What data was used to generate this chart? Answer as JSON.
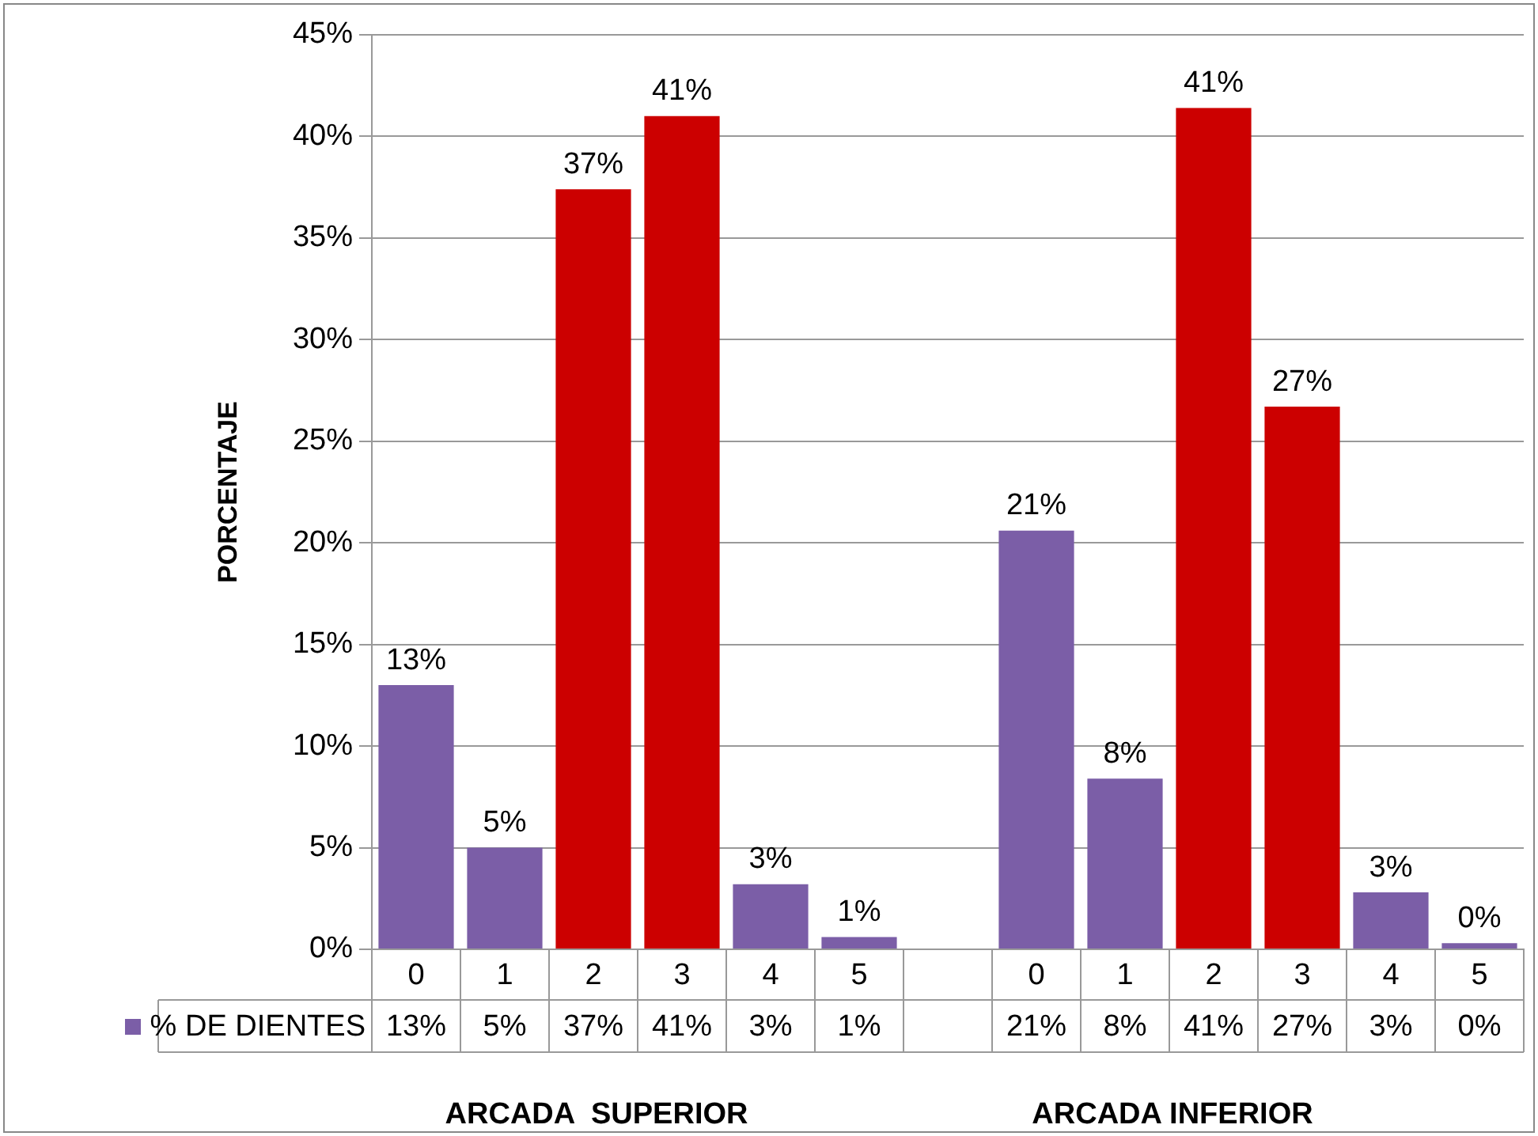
{
  "chart_data": {
    "type": "bar",
    "ylabel": "PORCENTAJE",
    "categories": [
      "0",
      "1",
      "2",
      "3",
      "4",
      "5",
      null,
      "0",
      "1",
      "2",
      "3",
      "4",
      "5"
    ],
    "series": [
      {
        "name": "% DE DIENTES",
        "color": "#7b5ea7",
        "values": [
          13,
          5,
          37.4,
          41,
          3.2,
          0.6,
          null,
          20.6,
          8.4,
          41.4,
          26.7,
          2.8,
          0.3
        ],
        "colors": [
          "#7b5ea7",
          "#7b5ea7",
          "#cc0000",
          "#cc0000",
          "#7b5ea7",
          "#7b5ea7",
          "#7b5ea7",
          "#7b5ea7",
          "#7b5ea7",
          "#cc0000",
          "#cc0000",
          "#7b5ea7",
          "#7b5ea7"
        ],
        "value_labels": [
          "13%",
          "5%",
          "37%",
          "41%",
          "3%",
          "1%",
          null,
          "21%",
          "8%",
          "41%",
          "27%",
          "3%",
          "0%"
        ]
      }
    ],
    "ylim": [
      0,
      45
    ],
    "yticks": [
      {
        "value": 0,
        "label": "0%"
      },
      {
        "value": 5,
        "label": "5%"
      },
      {
        "value": 10,
        "label": "10%"
      },
      {
        "value": 15,
        "label": "15%"
      },
      {
        "value": 20,
        "label": "20%"
      },
      {
        "value": 25,
        "label": "25%"
      },
      {
        "value": 30,
        "label": "30%"
      },
      {
        "value": 35,
        "label": "35%"
      },
      {
        "value": 40,
        "label": "40%"
      },
      {
        "value": 45,
        "label": "45%"
      }
    ],
    "grid": "y",
    "legend": "bottom",
    "annotations": [
      "ARCADA  SUPERIOR",
      "ARCADA INFERIOR"
    ]
  }
}
